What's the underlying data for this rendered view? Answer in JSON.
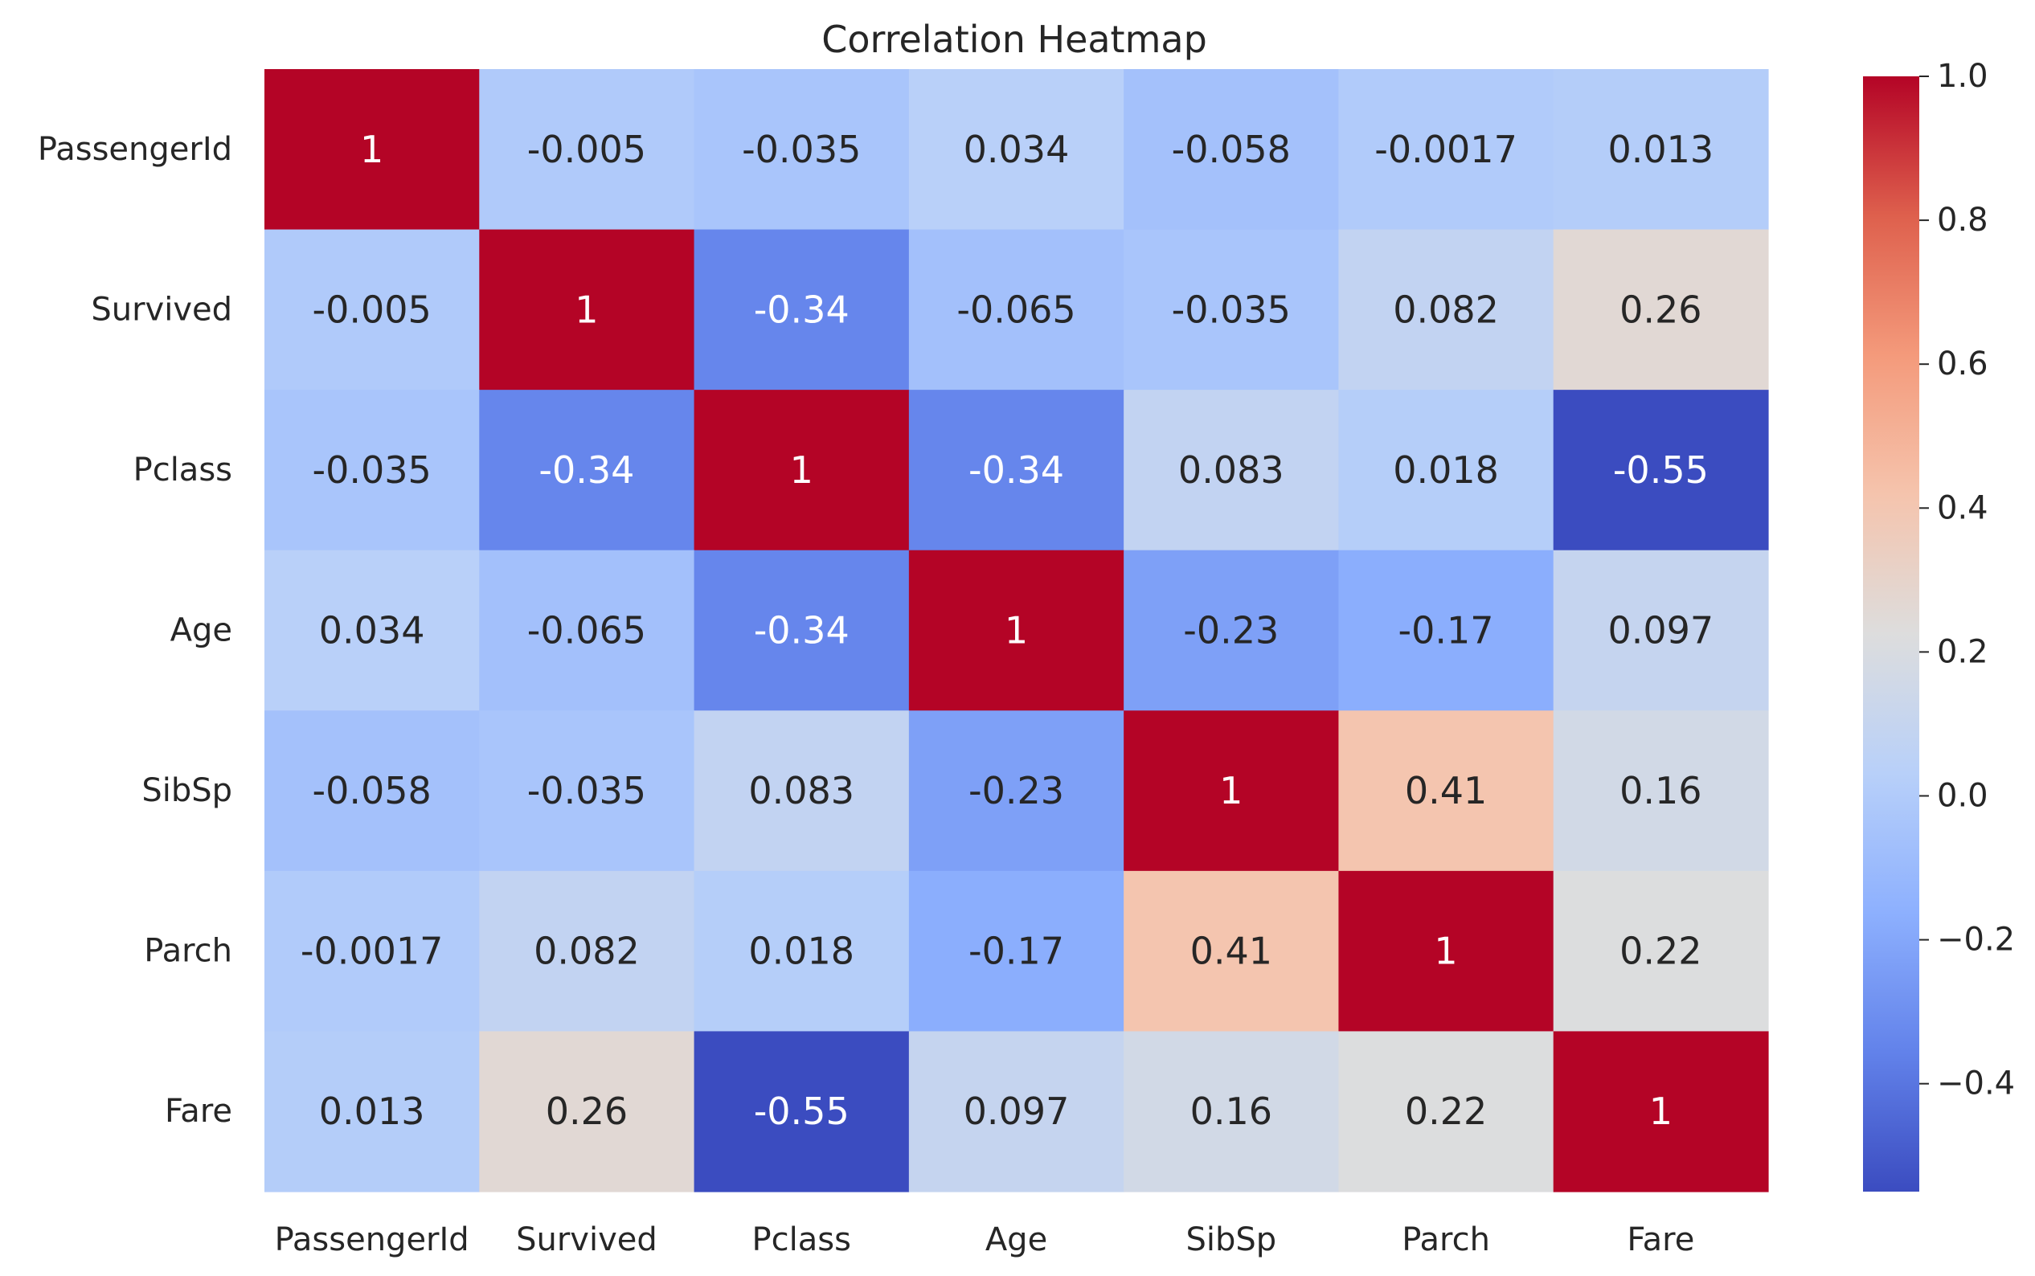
{
  "chart_data": {
    "type": "heatmap",
    "title": "Correlation Heatmap",
    "colormap": "coolwarm",
    "vmin": -0.55,
    "vmax": 1.0,
    "row_labels": [
      "PassengerId",
      "Survived",
      "Pclass",
      "Age",
      "SibSp",
      "Parch",
      "Fare"
    ],
    "col_labels": [
      "PassengerId",
      "Survived",
      "Pclass",
      "Age",
      "SibSp",
      "Parch",
      "Fare"
    ],
    "values": [
      [
        1,
        -0.005,
        -0.035,
        0.034,
        -0.058,
        -0.0017,
        0.013
      ],
      [
        -0.005,
        1,
        -0.34,
        -0.065,
        -0.035,
        0.082,
        0.26
      ],
      [
        -0.035,
        -0.34,
        1,
        -0.34,
        0.083,
        0.018,
        -0.55
      ],
      [
        0.034,
        -0.065,
        -0.34,
        1,
        -0.23,
        -0.17,
        0.097
      ],
      [
        -0.058,
        -0.035,
        0.083,
        -0.23,
        1,
        0.41,
        0.16
      ],
      [
        -0.0017,
        0.082,
        0.018,
        -0.17,
        0.41,
        1,
        0.22
      ],
      [
        0.013,
        0.26,
        -0.55,
        0.097,
        0.16,
        0.22,
        1
      ]
    ],
    "cell_labels": [
      [
        "1",
        "-0.005",
        "-0.035",
        "0.034",
        "-0.058",
        "-0.0017",
        "0.013"
      ],
      [
        "-0.005",
        "1",
        "-0.34",
        "-0.065",
        "-0.035",
        "0.082",
        "0.26"
      ],
      [
        "-0.035",
        "-0.34",
        "1",
        "-0.34",
        "0.083",
        "0.018",
        "-0.55"
      ],
      [
        "0.034",
        "-0.065",
        "-0.34",
        "1",
        "-0.23",
        "-0.17",
        "0.097"
      ],
      [
        "-0.058",
        "-0.035",
        "0.083",
        "-0.23",
        "1",
        "0.41",
        "0.16"
      ],
      [
        "-0.0017",
        "0.082",
        "0.018",
        "-0.17",
        "0.41",
        "1",
        "0.22"
      ],
      [
        "0.013",
        "0.26",
        "-0.55",
        "0.097",
        "0.16",
        "0.22",
        "1"
      ]
    ],
    "colorbar_ticks": [
      1.0,
      0.8,
      0.6,
      0.4,
      0.2,
      0.0,
      -0.2,
      -0.4
    ],
    "colorbar_tick_labels": [
      "1.0",
      "0.8",
      "0.6",
      "0.4",
      "0.2",
      "0.0",
      "−0.2",
      "−0.4"
    ]
  }
}
